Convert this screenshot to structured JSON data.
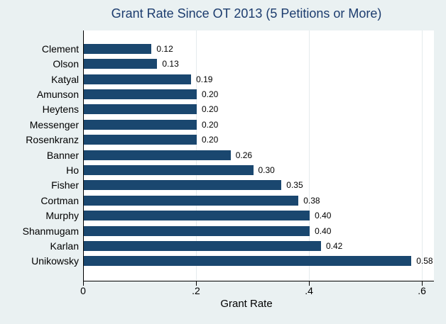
{
  "chart_data": {
    "type": "bar",
    "orientation": "horizontal",
    "title": "Grant Rate Since OT 2013 (5 Petitions or More)",
    "categories": [
      "Clement",
      "Olson",
      "Katyal",
      "Amunson",
      "Heytens",
      "Messenger",
      "Rosenkranz",
      "Banner",
      "Ho",
      "Fisher",
      "Cortman",
      "Murphy",
      "Shanmugam",
      "Karlan",
      "Unikowsky"
    ],
    "values": [
      0.12,
      0.13,
      0.19,
      0.2,
      0.2,
      0.2,
      0.2,
      0.26,
      0.3,
      0.35,
      0.38,
      0.4,
      0.4,
      0.42,
      0.58
    ],
    "value_labels": [
      "0.12",
      "0.13",
      "0.19",
      "0.20",
      "0.20",
      "0.20",
      "0.20",
      "0.26",
      "0.30",
      "0.35",
      "0.38",
      "0.40",
      "0.40",
      "0.42",
      "0.58"
    ],
    "xlabel": "Grant Rate",
    "xticks": [
      {
        "value": 0,
        "label": "0"
      },
      {
        "value": 0.2,
        "label": ".2"
      },
      {
        "value": 0.4,
        "label": ".4"
      },
      {
        "value": 0.6,
        "label": ".6"
      }
    ],
    "xlim": [
      0,
      0.62
    ],
    "grid": true,
    "legend": "none",
    "colors": {
      "bar": "#1a476f",
      "background": "#eaf1f2",
      "plot_background": "#ffffff",
      "title": "#1c3c6e",
      "gridline": "#e4ebed",
      "axis": "#000000",
      "text": "#000000"
    }
  }
}
